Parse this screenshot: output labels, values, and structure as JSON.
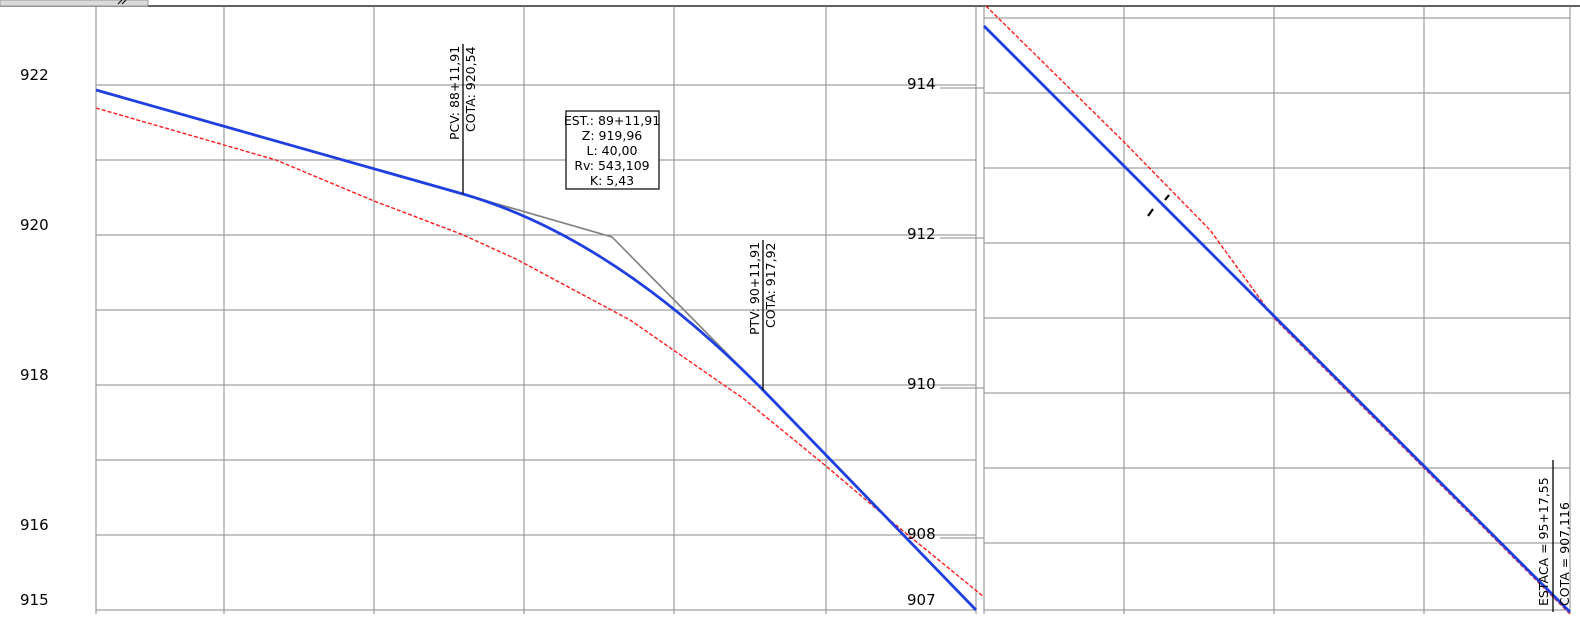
{
  "left_panel": {
    "y_axis": {
      "labels": [
        "922",
        "920",
        "918",
        "916",
        "915"
      ],
      "ticks": [
        922,
        920,
        918,
        916,
        915
      ]
    },
    "pcv": {
      "line1": "PCV: 88+11,91",
      "line2": "COTA: 920,54"
    },
    "ptv": {
      "line1": "PTV: 90+11,91",
      "line2": "COTA: 917,92"
    },
    "pvi_box": {
      "est": "EST.: 89+11,91",
      "z": "Z: 919,96",
      "l": "L: 40,00",
      "rv": "Rv: 543,109",
      "k": "K: 5,43"
    }
  },
  "right_panel": {
    "y_axis": {
      "labels": [
        "914",
        "912",
        "910",
        "908",
        "907"
      ],
      "ticks": [
        914,
        912,
        910,
        908,
        907
      ]
    },
    "end_marker": {
      "line1": "ESTACA  =  95+17,55",
      "line2": "COTA  =  907,116"
    }
  },
  "colors": {
    "grid": "#8a8a8a",
    "project_profile": "#1f3fe0",
    "terrain_profile": "#ff1a1a",
    "tangent": "#808080",
    "annotation": "#000000"
  }
}
